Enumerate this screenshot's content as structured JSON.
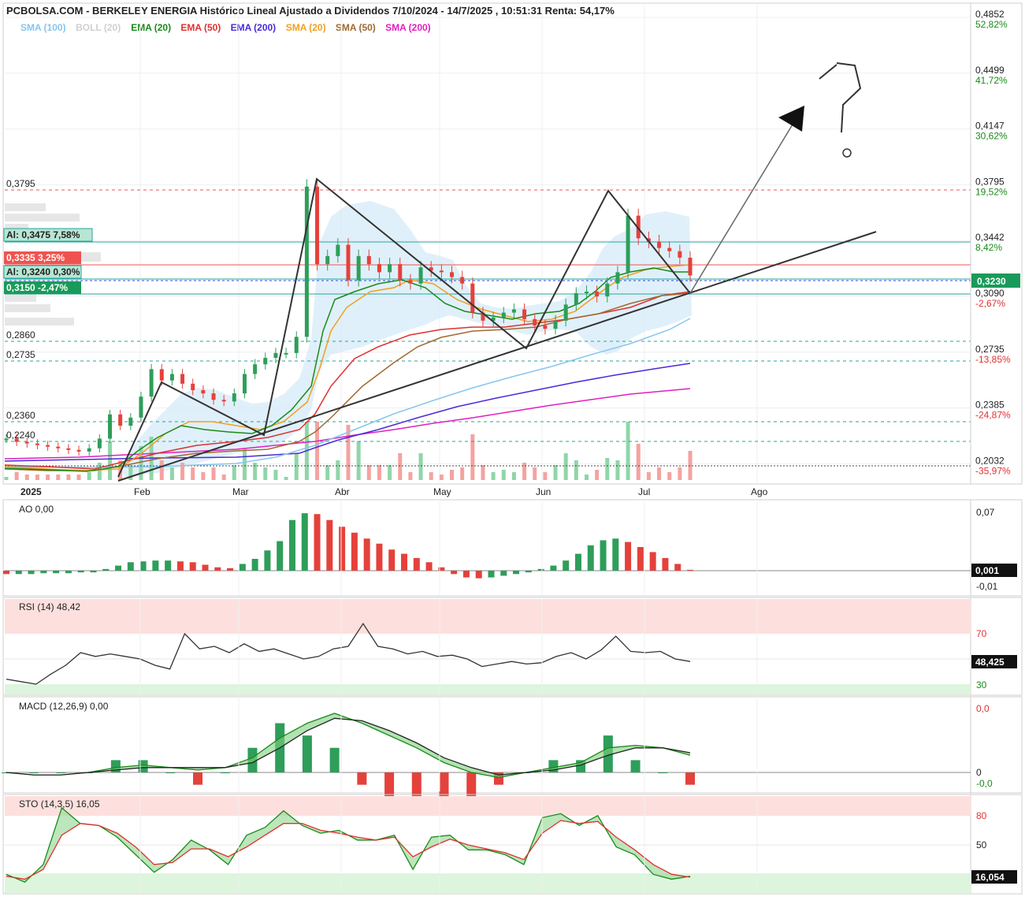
{
  "header": {
    "title": "PCBOLSA.COM - BERKELEY ENERGIA Histórico Lineal Ajustado a Dividendos 7/10/2024 - 14/7/2025 , 10:51:31 Renta: 54,17%"
  },
  "legend": [
    {
      "label": "SMA (100)",
      "color": "#87c6ef"
    },
    {
      "label": "BOLL (20)",
      "color": "#d0d0d0"
    },
    {
      "label": "EMA (20)",
      "color": "#1a8a1a"
    },
    {
      "label": "EMA (50)",
      "color": "#e03030"
    },
    {
      "label": "EMA (200)",
      "color": "#4a2ad8"
    },
    {
      "label": "SMA (20)",
      "color": "#f0a020"
    },
    {
      "label": "SMA (50)",
      "color": "#a06a30"
    },
    {
      "label": "SMA (200)",
      "color": "#e020c0"
    }
  ],
  "price_axis": [
    {
      "price": "0,4852",
      "pct": "52,82%",
      "pct_color": "#1a8a1a"
    },
    {
      "price": "0,4499",
      "pct": "41,72%",
      "pct_color": "#1a8a1a"
    },
    {
      "price": "0,4147",
      "pct": "30,62%",
      "pct_color": "#1a8a1a"
    },
    {
      "price": "0,3795",
      "pct": "19,52%",
      "pct_color": "#1a8a1a"
    },
    {
      "price": "0,3442",
      "pct": "8,42%",
      "pct_color": "#1a8a1a"
    },
    {
      "price": "0,3090",
      "pct": "-2,67%",
      "pct_color": "#e03030"
    },
    {
      "price": "0,2735",
      "pct": "-13,85%",
      "pct_color": "#e03030"
    },
    {
      "price": "0,2385",
      "pct": "-24,87%",
      "pct_color": "#e03030"
    },
    {
      "price": "0,2032",
      "pct": "-35,97%",
      "pct_color": "#e03030"
    }
  ],
  "current_price": "0,3230",
  "left_levels": [
    {
      "label": "0,3795"
    },
    {
      "label": "0,2860"
    },
    {
      "label": "0,2735"
    },
    {
      "label": "0,2360"
    },
    {
      "label": "0,2240"
    }
  ],
  "boxed_levels": [
    {
      "label": "Al: 0,3475  7,58%"
    },
    {
      "label": "0,3335  3,25%"
    },
    {
      "label": "Al: 0,3240  0,30%"
    },
    {
      "label": "0,3150  -2,47%"
    }
  ],
  "months": [
    "2025",
    "Feb",
    "Mar",
    "Abr",
    "May",
    "Jun",
    "Jul",
    "Ago"
  ],
  "ao": {
    "title": "AO    0,00",
    "axis_top": "0,07",
    "axis_bottom": "-0,01",
    "current": "0,001"
  },
  "rsi": {
    "title": "RSI (14)    48,42",
    "level_high": "70",
    "level_low": "30",
    "current": "48,425"
  },
  "macd": {
    "title": "MACD (12,26,9)    0,00",
    "axis_top": "0,0",
    "axis_zero": "0",
    "axis_bottom": "-0,0"
  },
  "sto": {
    "title": "STO (14,3,5)    16,05",
    "level_high": "80",
    "level_mid": "50",
    "level_low": "20",
    "current": "16,054"
  },
  "chart_data": {
    "type": "line",
    "title": "PCBOLSA.COM - BERKELEY ENERGIA Histórico Lineal Ajustado a Dividendos 7/10/2024 - 14/7/2025 , 10:51:31 Renta: 54,17%",
    "x_ticks": [
      "2025",
      "Feb",
      "Mar",
      "Abr",
      "May",
      "Jun",
      "Jul",
      "Ago"
    ],
    "ylim": [
      0.2032,
      0.4852
    ],
    "grid": true,
    "price_close_approx": [
      0.222,
      0.22,
      0.219,
      0.218,
      0.217,
      0.216,
      0.215,
      0.214,
      0.216,
      0.222,
      0.237,
      0.23,
      0.235,
      0.248,
      0.265,
      0.258,
      0.262,
      0.256,
      0.252,
      0.25,
      0.246,
      0.245,
      0.25,
      0.262,
      0.268,
      0.272,
      0.275,
      0.275,
      0.285,
      0.378,
      0.33,
      0.335,
      0.342,
      0.32,
      0.335,
      0.33,
      0.325,
      0.33,
      0.32,
      0.318,
      0.328,
      0.326,
      0.325,
      0.322,
      0.318,
      0.3,
      0.295,
      0.297,
      0.3,
      0.302,
      0.296,
      0.292,
      0.29,
      0.295,
      0.305,
      0.312,
      0.313,
      0.31,
      0.318,
      0.325,
      0.36,
      0.346,
      0.344,
      0.34,
      0.338,
      0.334,
      0.323
    ],
    "ao_values_approx": [
      -0.004,
      -0.004,
      -0.004,
      -0.003,
      -0.003,
      -0.003,
      -0.002,
      -0.002,
      0.002,
      0.006,
      0.01,
      0.011,
      0.012,
      0.012,
      0.011,
      0.01,
      0.007,
      0.004,
      0.003,
      0.008,
      0.014,
      0.024,
      0.035,
      0.06,
      0.068,
      0.067,
      0.06,
      0.052,
      0.045,
      0.038,
      0.032,
      0.025,
      0.02,
      0.015,
      0.01,
      0.004,
      -0.004,
      -0.008,
      -0.009,
      -0.008,
      -0.006,
      -0.004,
      -0.002,
      0.002,
      0.006,
      0.012,
      0.02,
      0.03,
      0.036,
      0.038,
      0.034,
      0.028,
      0.022,
      0.015,
      0.008,
      0.001
    ],
    "rsi_values_approx": [
      34,
      32,
      30,
      38,
      45,
      55,
      52,
      54,
      52,
      50,
      45,
      42,
      70,
      58,
      60,
      55,
      62,
      56,
      58,
      54,
      50,
      52,
      58,
      60,
      78,
      60,
      58,
      54,
      56,
      52,
      53,
      50,
      44,
      46,
      48,
      46,
      47,
      52,
      55,
      50,
      57,
      68,
      56,
      55,
      56,
      50,
      48
    ],
    "macd_line_approx": [
      0.0,
      -0.001,
      -0.001,
      0.0,
      0.002,
      0.003,
      0.002,
      0.001,
      0.002,
      0.006,
      0.014,
      0.02,
      0.024,
      0.02,
      0.015,
      0.01,
      0.004,
      0.0,
      -0.002,
      0.0,
      0.002,
      0.004,
      0.01,
      0.011,
      0.01,
      0.007
    ],
    "signal_line_approx": [
      0.0,
      -0.001,
      -0.001,
      0.0,
      0.001,
      0.002,
      0.002,
      0.002,
      0.002,
      0.004,
      0.01,
      0.017,
      0.022,
      0.021,
      0.017,
      0.012,
      0.006,
      0.002,
      -0.001,
      0.0,
      0.001,
      0.003,
      0.007,
      0.01,
      0.01,
      0.008
    ],
    "sto_k_approx": [
      20,
      12,
      30,
      88,
      72,
      70,
      58,
      40,
      22,
      35,
      55,
      45,
      30,
      60,
      68,
      85,
      70,
      62,
      65,
      55,
      55,
      60,
      25,
      58,
      60,
      45,
      45,
      40,
      30,
      78,
      82,
      70,
      80,
      48,
      40,
      20,
      15,
      18
    ],
    "sto_d_approx": [
      18,
      15,
      25,
      60,
      72,
      70,
      62,
      48,
      30,
      32,
      46,
      46,
      38,
      48,
      60,
      72,
      72,
      65,
      62,
      58,
      55,
      58,
      38,
      48,
      56,
      50,
      46,
      42,
      35,
      62,
      75,
      72,
      74,
      58,
      45,
      30,
      20,
      17
    ]
  }
}
